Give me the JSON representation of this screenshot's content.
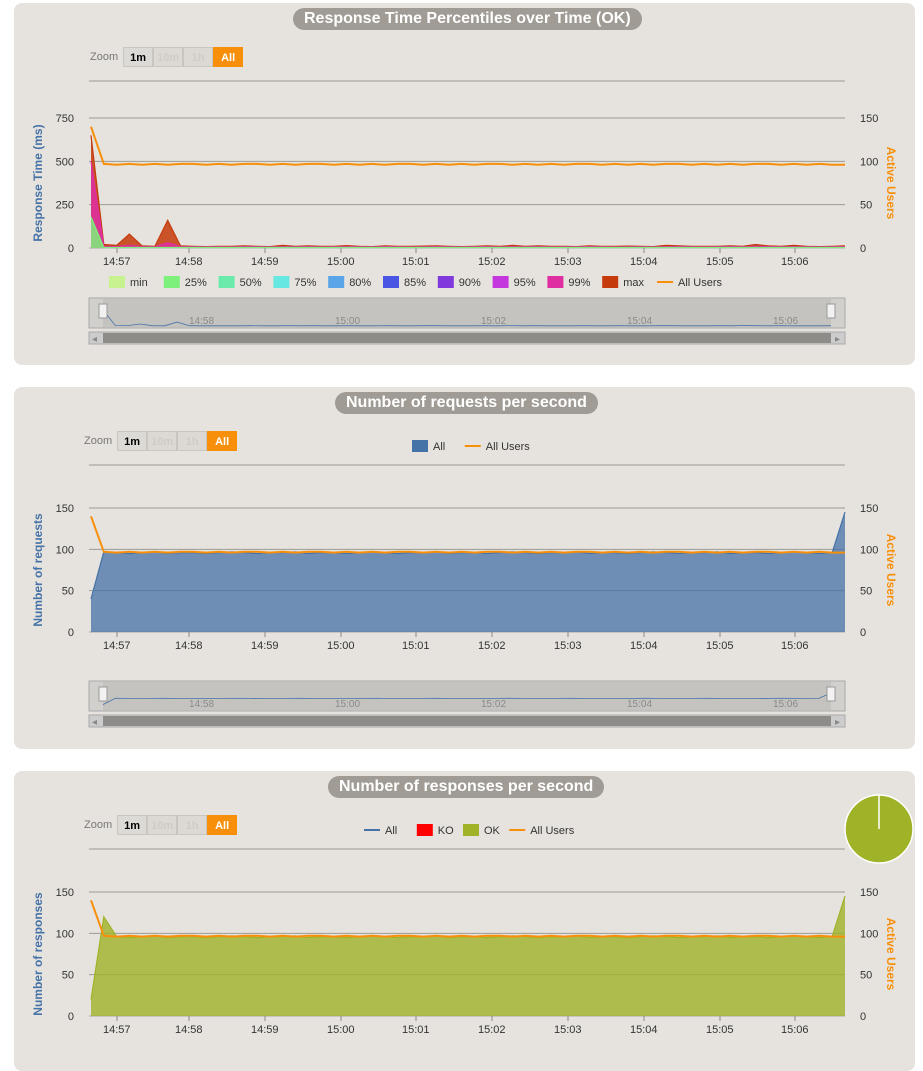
{
  "zoom": {
    "label": "Zoom",
    "buttons": [
      "1m",
      "10m",
      "1h",
      "All"
    ]
  },
  "x_ticks": [
    "14:57",
    "14:58",
    "14:59",
    "15:00",
    "15:01",
    "15:02",
    "15:03",
    "15:04",
    "15:05",
    "15:06"
  ],
  "navigator_ticks": [
    "14:58",
    "15:00",
    "15:02",
    "15:04",
    "15:06"
  ],
  "colors": {
    "active_users": "#f78f0b",
    "all": "#4572a7",
    "ko": "#ff0000",
    "ok": "#a0b228"
  },
  "panels": [
    {
      "title": "Response Time Percentiles over Time (OK)",
      "legend": [
        {
          "label": "min",
          "color": "#c6f38f",
          "kind": "box"
        },
        {
          "label": "25%",
          "color": "#7cf07a",
          "kind": "box"
        },
        {
          "label": "50%",
          "color": "#6bebab",
          "kind": "box"
        },
        {
          "label": "75%",
          "color": "#66e7e1",
          "kind": "box"
        },
        {
          "label": "80%",
          "color": "#5aa5e7",
          "kind": "box"
        },
        {
          "label": "85%",
          "color": "#4a55e4",
          "kind": "box"
        },
        {
          "label": "90%",
          "color": "#7f39dd",
          "kind": "box"
        },
        {
          "label": "95%",
          "color": "#c437de",
          "kind": "box"
        },
        {
          "label": "99%",
          "color": "#de2ea2",
          "kind": "box"
        },
        {
          "label": "max",
          "color": "#c53a0a",
          "kind": "box"
        },
        {
          "label": "All Users",
          "color": "#f78f0b",
          "kind": "line"
        }
      ]
    },
    {
      "title": "Number of requests per second",
      "legend": [
        {
          "label": "All",
          "color": "#4572a7",
          "kind": "box"
        },
        {
          "label": "All Users",
          "color": "#f78f0b",
          "kind": "line"
        }
      ]
    },
    {
      "title": "Number of responses per second",
      "legend": [
        {
          "label": "All",
          "color": "#4572a7",
          "kind": "line"
        },
        {
          "label": "KO",
          "color": "#ff0000",
          "kind": "box"
        },
        {
          "label": "OK",
          "color": "#a0b228",
          "kind": "box"
        },
        {
          "label": "All Users",
          "color": "#f78f0b",
          "kind": "line"
        }
      ]
    }
  ],
  "chart_data": [
    {
      "type": "area",
      "title": "Response Time Percentiles over Time (OK)",
      "ylabel": "Response Time (ms)",
      "y2label": "Active Users",
      "ylim": [
        0,
        750
      ],
      "y_ticks": [
        "0",
        "250",
        "500",
        "750"
      ],
      "y2lim": [
        0,
        150
      ],
      "y2_ticks": [
        "0",
        "50",
        "100",
        "150"
      ],
      "series": [
        {
          "name": "max",
          "values": [
            650,
            20,
            15,
            80,
            12,
            10,
            160,
            12,
            10,
            8,
            10,
            9,
            12,
            10,
            8,
            15,
            10,
            12,
            9,
            10,
            14,
            10,
            8,
            12,
            10,
            9,
            11,
            12,
            10,
            8,
            10,
            12,
            9,
            15,
            10,
            12,
            9,
            10,
            8,
            12,
            10,
            9,
            11,
            10,
            8,
            15,
            12,
            10,
            9,
            10,
            12,
            10,
            20,
            12,
            10,
            15,
            10,
            8,
            10,
            12
          ]
        },
        {
          "name": "99%",
          "values": [
            500,
            10,
            8,
            15,
            8,
            7,
            30,
            8,
            7,
            6,
            7,
            6,
            8,
            7,
            6,
            8,
            7,
            8,
            6,
            7,
            8,
            7,
            6,
            8,
            7,
            6,
            7,
            8,
            7,
            6,
            7,
            8,
            6,
            8,
            7,
            8,
            6,
            7,
            6,
            8,
            7,
            6,
            7,
            7,
            6,
            8,
            8,
            7,
            6,
            7,
            8,
            7,
            10,
            8,
            7,
            8,
            7,
            6,
            7,
            8
          ]
        },
        {
          "name": "min",
          "values": [
            180,
            3,
            3,
            3,
            3,
            3,
            3,
            3,
            3,
            3,
            3,
            3,
            3,
            3,
            3,
            3,
            3,
            3,
            3,
            3,
            3,
            3,
            3,
            3,
            3,
            3,
            3,
            3,
            3,
            3,
            3,
            3,
            3,
            3,
            3,
            3,
            3,
            3,
            3,
            3,
            3,
            3,
            3,
            3,
            3,
            3,
            3,
            3,
            3,
            3,
            3,
            3,
            3,
            3,
            3,
            3,
            3,
            3,
            3,
            3
          ]
        },
        {
          "name": "All Users",
          "axis": "y2",
          "values": [
            140,
            97,
            96,
            97,
            96,
            97,
            96,
            97,
            97,
            96,
            97,
            96,
            97,
            97,
            96,
            97,
            96,
            97,
            97,
            96,
            97,
            96,
            97,
            96,
            97,
            97,
            96,
            97,
            96,
            97,
            96,
            97,
            97,
            96,
            97,
            96,
            97,
            96,
            97,
            97,
            96,
            97,
            96,
            97,
            96,
            97,
            97,
            96,
            97,
            96,
            97,
            96,
            97,
            97,
            96,
            97,
            96,
            97,
            96,
            96
          ]
        }
      ]
    },
    {
      "type": "area",
      "title": "Number of requests per second",
      "ylabel": "Number of requests",
      "y2label": "Active Users",
      "ylim": [
        0,
        150
      ],
      "y_ticks": [
        "0",
        "50",
        "100",
        "150"
      ],
      "y2lim": [
        0,
        150
      ],
      "y2_ticks": [
        "0",
        "50",
        "100",
        "150"
      ],
      "series": [
        {
          "name": "All",
          "values": [
            40,
            97,
            96,
            95,
            96,
            97,
            95,
            96,
            96,
            95,
            96,
            97,
            96,
            95,
            96,
            96,
            97,
            95,
            96,
            96,
            95,
            96,
            97,
            96,
            95,
            96,
            96,
            97,
            95,
            96,
            96,
            95,
            96,
            97,
            96,
            95,
            96,
            96,
            97,
            95,
            96,
            96,
            95,
            96,
            97,
            96,
            95,
            96,
            96,
            97,
            95,
            96,
            96,
            95,
            96,
            97,
            96,
            95,
            96,
            145
          ]
        },
        {
          "name": "All Users",
          "axis": "y2",
          "values": [
            140,
            97,
            96,
            97,
            96,
            97,
            96,
            97,
            97,
            96,
            97,
            96,
            97,
            97,
            96,
            97,
            96,
            97,
            97,
            96,
            97,
            96,
            97,
            96,
            97,
            97,
            96,
            97,
            96,
            97,
            96,
            97,
            97,
            96,
            97,
            96,
            97,
            96,
            97,
            97,
            96,
            97,
            96,
            97,
            96,
            97,
            97,
            96,
            97,
            96,
            97,
            96,
            97,
            97,
            96,
            97,
            96,
            97,
            96,
            96
          ]
        }
      ]
    },
    {
      "type": "area",
      "title": "Number of responses per second",
      "ylabel": "Number of responses",
      "y2label": "Active Users",
      "ylim": [
        0,
        150
      ],
      "y_ticks": [
        "0",
        "50",
        "100",
        "150"
      ],
      "y2lim": [
        0,
        150
      ],
      "y2_ticks": [
        "0",
        "50",
        "100",
        "150"
      ],
      "series": [
        {
          "name": "OK",
          "values": [
            20,
            120,
            96,
            95,
            96,
            97,
            95,
            96,
            96,
            95,
            96,
            97,
            96,
            95,
            96,
            96,
            97,
            95,
            96,
            96,
            95,
            96,
            97,
            96,
            95,
            96,
            96,
            97,
            95,
            96,
            96,
            95,
            96,
            97,
            96,
            95,
            96,
            96,
            97,
            95,
            96,
            96,
            95,
            96,
            97,
            96,
            95,
            96,
            96,
            97,
            95,
            96,
            96,
            95,
            96,
            97,
            96,
            95,
            96,
            145
          ]
        },
        {
          "name": "All Users",
          "axis": "y2",
          "values": [
            140,
            97,
            96,
            97,
            96,
            97,
            96,
            97,
            97,
            96,
            97,
            96,
            97,
            97,
            96,
            97,
            96,
            97,
            97,
            96,
            97,
            96,
            97,
            96,
            97,
            97,
            96,
            97,
            96,
            97,
            96,
            97,
            97,
            96,
            97,
            96,
            97,
            96,
            97,
            97,
            96,
            97,
            96,
            97,
            96,
            97,
            97,
            96,
            97,
            96,
            97,
            96,
            97,
            97,
            96,
            97,
            96,
            97,
            96,
            96
          ]
        }
      ]
    },
    {
      "type": "pie",
      "categories": [
        "OK",
        "KO"
      ],
      "values": [
        100,
        0
      ]
    }
  ]
}
